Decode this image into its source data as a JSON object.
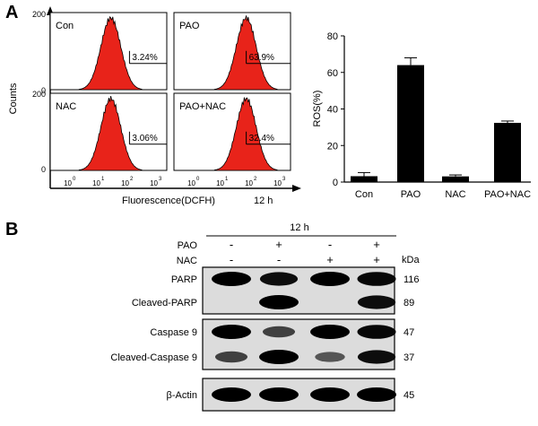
{
  "panel_a": {
    "letter": "A",
    "flow": {
      "y_label": "Counts",
      "x_label": "Fluorescence(DCFH)",
      "time_label": "12 h",
      "y_tick": "200",
      "y_tick_zero": "0",
      "x_tick_base": "10",
      "x_tick_exponents": [
        "0",
        "1",
        "2",
        "3"
      ],
      "panels": [
        {
          "name": "Con",
          "percent": "3.24%"
        },
        {
          "name": "PAO",
          "percent": "63.9%"
        },
        {
          "name": "NAC",
          "percent": "3.06%"
        },
        {
          "name": "PAO+NAC",
          "percent": "32.4%"
        }
      ]
    }
  },
  "chart_data": {
    "type": "bar",
    "title": "",
    "xlabel": "",
    "ylabel": "ROS(%)",
    "categories": [
      "Con",
      "PAO",
      "NAC",
      "PAO+NAC"
    ],
    "values": [
      3.2,
      64,
      3.1,
      32.4
    ],
    "errors": [
      2.0,
      4.0,
      0.8,
      1.0
    ],
    "ylim": [
      0,
      80
    ],
    "yticks": [
      0,
      20,
      40,
      60,
      80
    ],
    "bar_color": "#000000",
    "grid": false
  },
  "panel_b": {
    "letter": "B",
    "time_label": "12 h",
    "treatments": [
      {
        "label": "PAO",
        "signs": [
          "-",
          "+",
          "-",
          "+"
        ]
      },
      {
        "label": "NAC",
        "signs": [
          "-",
          "-",
          "+",
          "+"
        ]
      }
    ],
    "kda_label": "kDa",
    "blots": [
      {
        "rows": [
          {
            "label": "PARP",
            "kda": "116",
            "intensity": [
              1,
              0.9,
              1,
              0.95
            ]
          },
          {
            "label": "Cleaved-PARP",
            "kda": "89",
            "intensity": [
              0,
              1,
              0,
              0.9
            ]
          }
        ]
      },
      {
        "rows": [
          {
            "label": "Caspase 9",
            "kda": "47",
            "intensity": [
              1,
              0.55,
              1,
              0.95
            ]
          },
          {
            "label": "Cleaved-Caspase 9",
            "kda": "37",
            "intensity": [
              0.55,
              1,
              0.4,
              0.9
            ]
          }
        ]
      },
      {
        "rows": [
          {
            "label": "β-Actin",
            "kda": "45",
            "intensity": [
              1,
              1,
              1,
              1
            ]
          }
        ]
      }
    ]
  }
}
